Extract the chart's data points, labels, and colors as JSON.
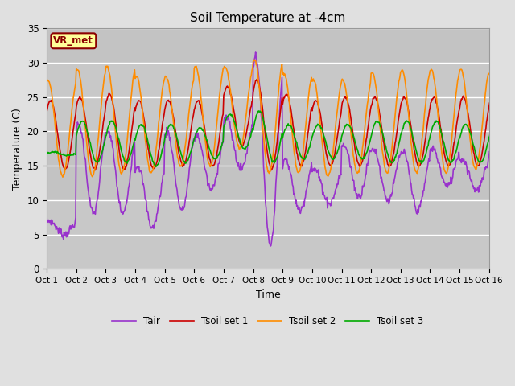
{
  "title": "Soil Temperature at -4cm",
  "xlabel": "Time",
  "ylabel": "Temperature (C)",
  "ylim": [
    0,
    35
  ],
  "xlim": [
    0,
    15
  ],
  "background_color": "#e0e0e0",
  "plot_bg_color": "#d3d3d3",
  "inner_bg_color": "#c8c8c8",
  "grid_color": "#b0b0b0",
  "annotation_text": "VR_met",
  "annotation_bg": "#ffff99",
  "annotation_border": "#8b0000",
  "series": {
    "Tair": {
      "color": "#9932cc",
      "lw": 1.2
    },
    "Tsoil set 1": {
      "color": "#cc0000",
      "lw": 1.2
    },
    "Tsoil set 2": {
      "color": "#ff8c00",
      "lw": 1.2
    },
    "Tsoil set 3": {
      "color": "#00aa00",
      "lw": 1.2
    }
  },
  "xtick_labels": [
    "Oct 1",
    "Oct 2",
    "Oct 3",
    "Oct 4",
    "Oct 5",
    "Oct 6",
    "Oct 7",
    "Oct 8",
    "Oct 9",
    "Oct 10",
    "Oct 11",
    "Oct 12",
    "Oct 13",
    "Oct 14",
    "Oct 15",
    "Oct 16"
  ],
  "ytick_values": [
    0,
    5,
    10,
    15,
    20,
    25,
    30,
    35
  ],
  "n_days": 16,
  "pts_per_day": 48,
  "tair_night": [
    5.0,
    8.0,
    8.0,
    6.0,
    8.5,
    11.5,
    14.5,
    3.5,
    8.5,
    9.5,
    10.5,
    10.0,
    8.5,
    12.0,
    11.5,
    11.5
  ],
  "tair_day": [
    7.0,
    21.0,
    20.0,
    15.0,
    20.0,
    19.5,
    22.0,
    31.0,
    16.0,
    14.5,
    18.0,
    17.5,
    17.0,
    17.5,
    16.0,
    17.5
  ],
  "ts1_night": [
    14.5,
    14.5,
    14.5,
    14.5,
    15.0,
    15.0,
    18.0,
    14.5,
    15.0,
    15.0,
    15.0,
    15.0,
    15.0,
    15.0,
    15.0,
    15.5
  ],
  "ts1_day": [
    24.5,
    25.0,
    25.5,
    24.5,
    24.5,
    24.5,
    26.5,
    27.5,
    25.5,
    24.5,
    25.0,
    25.0,
    25.0,
    25.0,
    25.0,
    25.0
  ],
  "ts2_night": [
    13.5,
    13.5,
    14.0,
    14.0,
    15.0,
    15.0,
    17.5,
    14.0,
    14.0,
    13.5,
    14.0,
    14.0,
    14.0,
    14.0,
    14.5,
    14.5
  ],
  "ts2_day": [
    27.5,
    29.0,
    29.5,
    28.0,
    28.0,
    29.5,
    29.5,
    30.5,
    28.5,
    27.5,
    27.5,
    28.5,
    29.0,
    29.0,
    29.0,
    28.5
  ],
  "ts3_night": [
    16.5,
    15.5,
    15.5,
    15.0,
    15.5,
    16.0,
    17.5,
    15.5,
    16.0,
    16.0,
    16.0,
    15.5,
    15.5,
    15.5,
    15.5,
    16.0
  ],
  "ts3_day": [
    17.0,
    21.5,
    21.5,
    21.0,
    21.0,
    20.5,
    22.5,
    23.0,
    21.0,
    21.0,
    21.0,
    21.5,
    21.5,
    21.5,
    21.0,
    21.0
  ]
}
